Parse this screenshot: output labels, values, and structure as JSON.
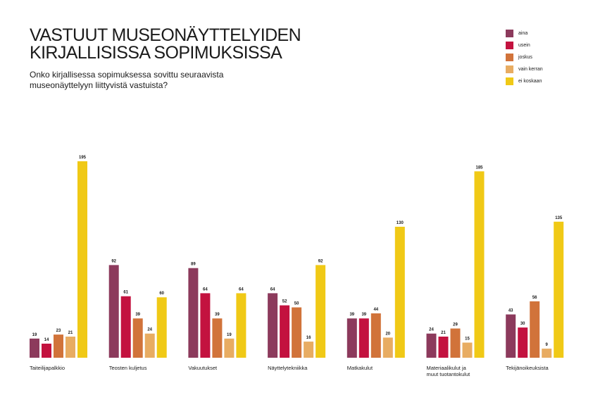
{
  "title_line1": "VASTUUT MUSEONÄYTTELYIDEN",
  "title_line2": "KIRJALLISISSA SOPIMUKSISSA",
  "subtitle_line1": "Onko kirjallisessa sopimuksessa sovittu seuraavista",
  "subtitle_line2": "museonäyttelyyn liittyvistä vastuista?",
  "chart_data": {
    "type": "bar",
    "title": "VASTUUT MUSEONÄYTTELYIDEN KIRJALLISISSA SOPIMUKSISSA",
    "subtitle": "Onko kirjallisessa sopimuksessa sovittu seuraavista museonäyttelyyn liittyvistä vastuista?",
    "xlabel": "",
    "ylabel": "",
    "ylim": [
      0,
      195
    ],
    "grid": false,
    "legend_position": "top-right",
    "categories": [
      [
        "Taiteilijapalkkio"
      ],
      [
        "Teosten kuljetus"
      ],
      [
        "Vakuutukset"
      ],
      [
        "Näyttelytekniikka"
      ],
      [
        "Matkakulut"
      ],
      [
        "Materiaalikulut ja",
        "muut tuotantokulut"
      ],
      [
        "Tekijänoikeuksista"
      ]
    ],
    "series": [
      {
        "name": "aina",
        "color": "#8c3a5c",
        "values": [
          19,
          92,
          89,
          64,
          39,
          24,
          43
        ]
      },
      {
        "name": "usein",
        "color": "#c3123f",
        "values": [
          14,
          61,
          64,
          52,
          39,
          21,
          30
        ]
      },
      {
        "name": "joskus",
        "color": "#d1733a",
        "values": [
          23,
          39,
          39,
          50,
          44,
          29,
          56
        ]
      },
      {
        "name": "vain kerran",
        "color": "#e8ac62",
        "values": [
          21,
          24,
          19,
          16,
          20,
          15,
          9
        ]
      },
      {
        "name": "ei koskaan",
        "color": "#f0c916",
        "values": [
          195,
          60,
          64,
          92,
          130,
          185,
          135
        ]
      }
    ]
  }
}
